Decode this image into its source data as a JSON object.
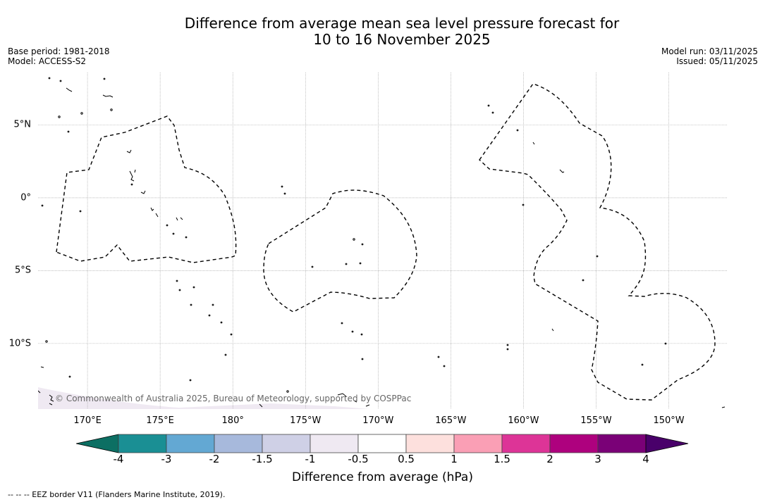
{
  "title": {
    "line1": "Difference from average mean sea level pressure forecast for",
    "line2": "10 to 16 November 2025"
  },
  "info_left": {
    "base_period": "Base period: 1981-2018",
    "model": "Model: ACCESS-S2"
  },
  "info_right": {
    "model_run": "Model run: 03/11/2025",
    "issued": "Issued: 05/11/2025"
  },
  "latitude_labels": [
    {
      "value": 5,
      "label": "5°N"
    },
    {
      "value": 0,
      "label": "0°"
    },
    {
      "value": -5,
      "label": "5°S"
    },
    {
      "value": -10,
      "label": "10°S"
    }
  ],
  "longitude_labels": [
    {
      "value": 170,
      "label": "170°E"
    },
    {
      "value": 175,
      "label": "175°E"
    },
    {
      "value": 180,
      "label": "180°"
    },
    {
      "value": 185,
      "label": "175°W"
    },
    {
      "value": 190,
      "label": "170°W"
    },
    {
      "value": 195,
      "label": "165°W"
    },
    {
      "value": 200,
      "label": "160°W"
    },
    {
      "value": 205,
      "label": "155°W"
    },
    {
      "value": 210,
      "label": "150°W"
    }
  ],
  "extent": {
    "lon_min": 166.6,
    "lon_max": 214.0,
    "lat_min": -14.5,
    "lat_max": 8.6
  },
  "copyright": "© Commonwealth of Australia 2025, Bureau of Meteorology, supported by COSPPac",
  "colorbar": {
    "title": "Difference from average (hPa)",
    "ticks": [
      "-4",
      "-3",
      "-2",
      "-1.5",
      "-1",
      "-0.5",
      "0.5",
      "1",
      "1.5",
      "2",
      "3",
      "4"
    ],
    "colors": [
      "#1a8f94",
      "#63a8d3",
      "#a7b9dc",
      "#cfd0e6",
      "#efe9f2",
      "#ffffff",
      "#fde0dd",
      "#fa9fb5",
      "#dd3497",
      "#ae017e",
      "#7a0177"
    ],
    "under_color": "#0c6f63",
    "over_color": "#49006a"
  },
  "legend": "--  --  -- EEZ border V11 (Flanders Marine Institute, 2019)."
}
